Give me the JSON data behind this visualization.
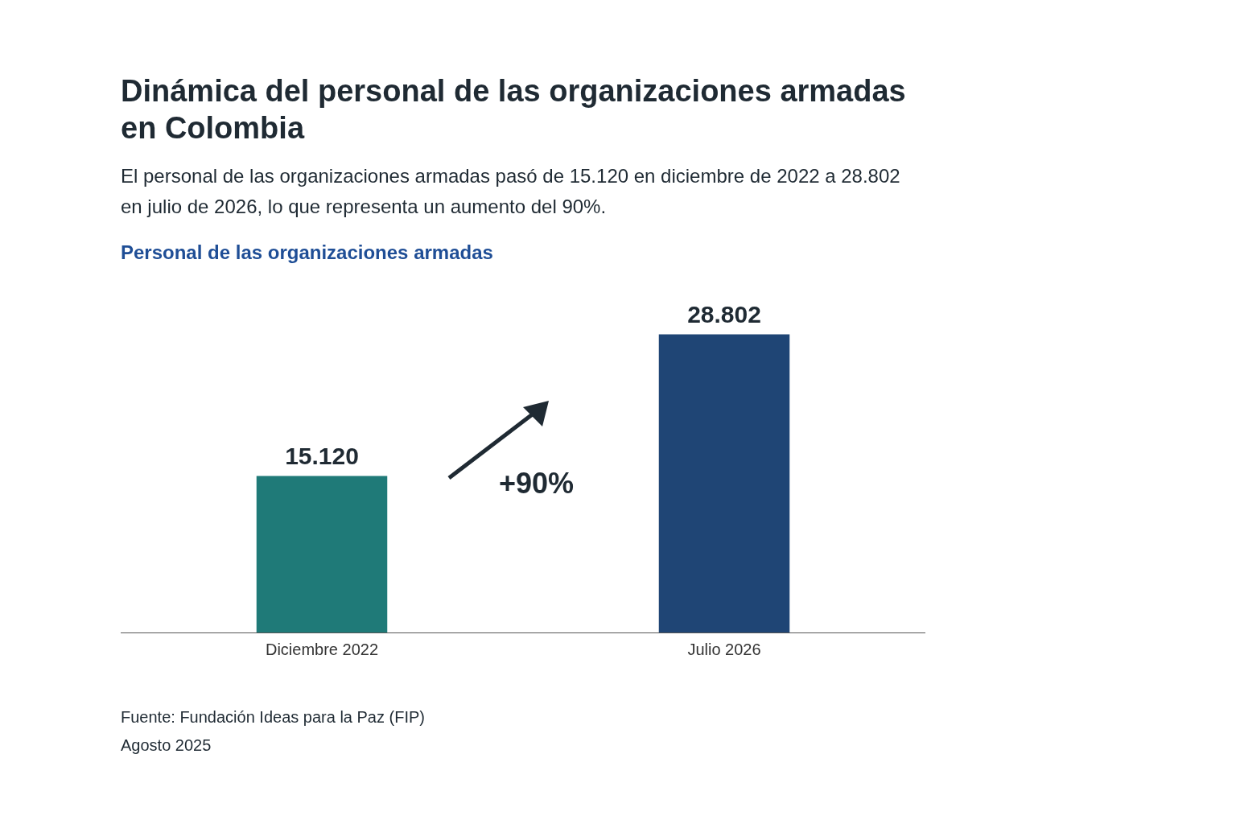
{
  "chart_data": {
    "type": "bar",
    "title": "Dinámica del personal de las organizaciones armadas en Colombia",
    "subtitle": "El personal de las organizaciones armadas pasó de 15.120 en diciembre de 2022 a 28.802 en julio de 2026, lo que representa un aumento del 90%.",
    "categories": [
      "Diciembre 2022",
      "Julio 2026"
    ],
    "values": [
      15120,
      28802
    ],
    "colors": [
      "#1f7a78",
      "#1f4575"
    ],
    "value_labels": [
      "15.120",
      "28.802"
    ],
    "annotations": [
      "Personal de las organizaciones armadas",
      "+90%",
      "Fuente: Fundación Ideas para la Paz (FIP)",
      "Agosto 2025"
    ],
    "grid": false,
    "legend": false
  }
}
